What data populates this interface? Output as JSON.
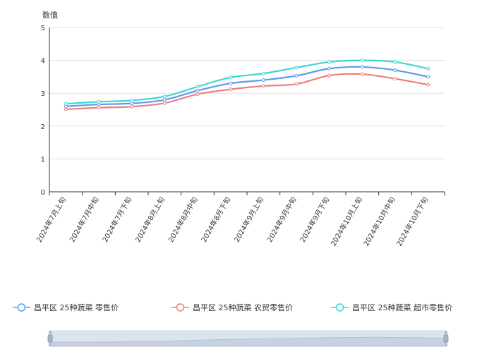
{
  "chart_data": {
    "type": "line",
    "title": "",
    "xlabel": "",
    "ylabel": "数值",
    "ylim": [
      0,
      5
    ],
    "yticks": [
      "0",
      "1",
      "2",
      "3",
      "4",
      "5"
    ],
    "grid": true,
    "legend_position": "bottom",
    "categories": [
      "2024年7月上旬",
      "2024年7月中旬",
      "2024年7月下旬",
      "2024年8月上旬",
      "2024年8月中旬",
      "2024年8月下旬",
      "2024年9月上旬",
      "2024年9月中旬",
      "2024年9月下旬",
      "2024年10月上旬",
      "2024年10月中旬",
      "2024年10月下旬"
    ],
    "series": [
      {
        "name": "昌平区 25种蔬菜 零售价",
        "color": "#5b9bf0",
        "values": [
          2.6,
          2.66,
          2.69,
          2.8,
          3.08,
          3.3,
          3.4,
          3.53,
          3.75,
          3.8,
          3.7,
          3.5
        ]
      },
      {
        "name": "昌平区 25种蔬菜 农贸零售价",
        "color": "#ee7c7c",
        "values": [
          2.51,
          2.56,
          2.59,
          2.7,
          2.97,
          3.12,
          3.22,
          3.28,
          3.54,
          3.58,
          3.44,
          3.26
        ]
      },
      {
        "name": "昌平区 25种蔬菜 超市零售价",
        "color": "#3dd6d0",
        "values": [
          2.68,
          2.74,
          2.78,
          2.9,
          3.2,
          3.48,
          3.6,
          3.78,
          3.95,
          4.0,
          3.95,
          3.75
        ]
      }
    ]
  }
}
